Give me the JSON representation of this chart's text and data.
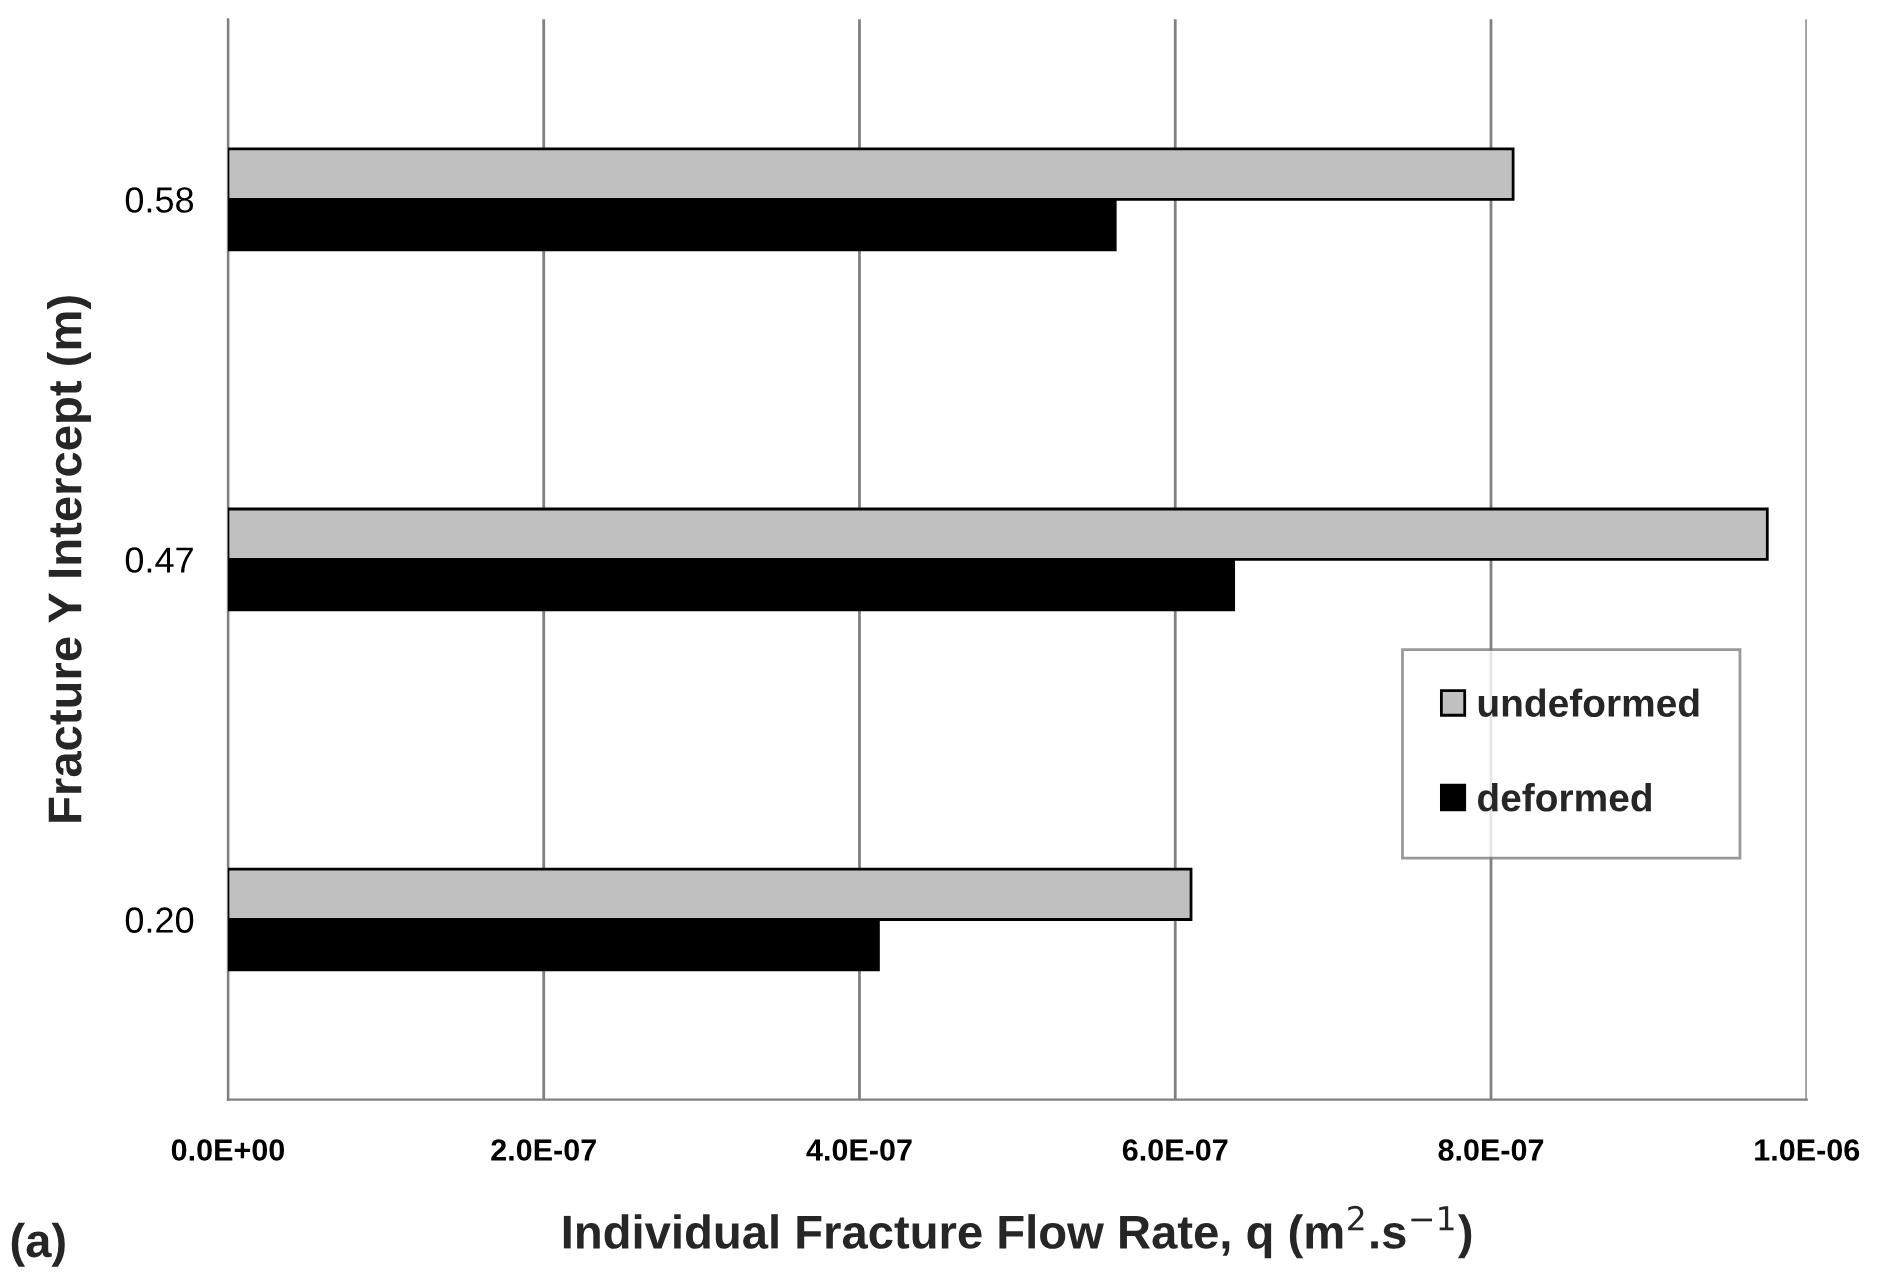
{
  "chart_data": {
    "type": "bar",
    "orientation": "horizontal",
    "xlabel": "Individual Fracture Flow Rate, q (m$^{2}$.s$^{−1}$)",
    "ylabel": "Fracture Y Intercept (m)",
    "categories": [
      "0.58",
      "0.47",
      "0.20"
    ],
    "series": [
      {
        "name": "undeformed",
        "color": "#c0c0c0",
        "values": [
          8.14e-07,
          9.75e-07,
          6.1e-07
        ]
      },
      {
        "name": "deformed",
        "color": "#000000",
        "values": [
          5.62e-07,
          6.37e-07,
          4.12e-07
        ]
      }
    ],
    "xlim": [
      0,
      1e-06
    ],
    "xticks": [
      {
        "value": 0,
        "label": "0.0E+00"
      },
      {
        "value": 2e-07,
        "label": "2.0E-07"
      },
      {
        "value": 4e-07,
        "label": "4.0E-07"
      },
      {
        "value": 6e-07,
        "label": "6.0E-07"
      },
      {
        "value": 8e-07,
        "label": "8.0E-07"
      },
      {
        "value": 1e-06,
        "label": "1.0E-06"
      }
    ],
    "grid": "x",
    "legend": "right",
    "annotations": [
      "(a)"
    ]
  }
}
